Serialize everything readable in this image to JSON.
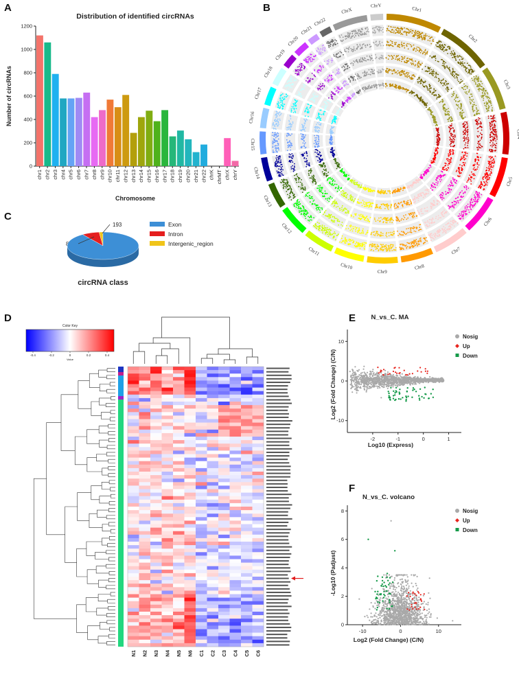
{
  "panels": {
    "a": "A",
    "b": "B",
    "c": "C",
    "d": "D",
    "e": "E",
    "f": "F"
  },
  "chart_data": [
    {
      "id": "A",
      "type": "bar",
      "title": "Distribution of identified circRNAs",
      "xlabel": "Chromosome",
      "ylabel": "Number of circRNAs",
      "ylim": [
        0,
        1200
      ],
      "yticks": [
        0,
        200,
        400,
        600,
        800,
        1000,
        1200
      ],
      "categories": [
        "chr1",
        "chr2",
        "chr3",
        "chr4",
        "chr5",
        "chr6",
        "chr7",
        "chr8",
        "chr9",
        "chr10",
        "chr11",
        "chr12",
        "chr13",
        "chr14",
        "chr15",
        "chr16",
        "chr17",
        "chr18",
        "chr19",
        "chr20",
        "chr21",
        "chr22",
        "chrK",
        "chrMT",
        "chrX",
        "chrY"
      ],
      "values": [
        1120,
        1060,
        790,
        580,
        580,
        585,
        630,
        420,
        480,
        570,
        505,
        610,
        285,
        420,
        475,
        385,
        480,
        255,
        305,
        230,
        120,
        185,
        0,
        0,
        240,
        45
      ],
      "colors": [
        "#f4736a",
        "#18b98a",
        "#1fb1f0",
        "#21a7c2",
        "#64a3f5",
        "#9f8af4",
        "#c56ff2",
        "#e76af3",
        "#ee6bc9",
        "#f07a37",
        "#d88e16",
        "#cd9a10",
        "#b39f0b",
        "#9ea60d",
        "#80ad12",
        "#4fb21b",
        "#2ab63c",
        "#25b779",
        "#21b8a3",
        "#22b6bd",
        "#22b3ce",
        "#21acde",
        "#ffffff",
        "#ffffff",
        "#ff5fb8",
        "#f36aa7"
      ]
    },
    {
      "id": "B",
      "type": "circos",
      "chromosomes": [
        "Chr1",
        "Chr2",
        "Chr3",
        "Chr4",
        "Chr5",
        "Chr6",
        "Chr7",
        "Chr8",
        "Chr9",
        "Chr10",
        "Chr11",
        "Chr12",
        "Chr13",
        "Chr14",
        "Chr15",
        "Chr16",
        "Chr17",
        "Chr18",
        "Chr19",
        "Chr20",
        "Chr21",
        "Chr22",
        "ChrX",
        "ChrY"
      ],
      "colors": [
        "#bf8800",
        "#6e6400",
        "#999922",
        "#cc0000",
        "#ff0000",
        "#ff00cc",
        "#ffcccc",
        "#ff9900",
        "#ffcc00",
        "#ffff00",
        "#ccff00",
        "#00ff00",
        "#336600",
        "#000099",
        "#6699ff",
        "#99ccff",
        "#00ffff",
        "#ccffff",
        "#9900cc",
        "#cc33ff",
        "#cc99ff",
        "#666666",
        "#999999",
        "#cccccc"
      ]
    },
    {
      "id": "C",
      "type": "pie",
      "xlabel": "circRNA class",
      "labels": [
        "Exon",
        "Intron",
        "Intergenic_region"
      ],
      "values": [
        10064,
        884,
        193
      ],
      "colors": [
        "#3d8fd6",
        "#e51e1e",
        "#f0c419"
      ]
    },
    {
      "id": "D",
      "type": "heatmap",
      "columns": [
        "N1",
        "N2",
        "N3",
        "N4",
        "N5",
        "N6",
        "C1",
        "C2",
        "C3",
        "C4",
        "C5",
        "C6"
      ],
      "color_key": {
        "title": "Color Key",
        "ticks": [
          "-0.4",
          "-0.2",
          "0",
          "0.2",
          "0.4"
        ],
        "label": "Value"
      },
      "row_count": 80,
      "highlighted_row": 60
    },
    {
      "id": "E",
      "type": "scatter",
      "title": "N_vs_C. MA",
      "xlabel": "Log10 (Express)",
      "ylabel": "Log2 (Fold Change) (C/N)",
      "xlim": [
        -3,
        1.5
      ],
      "ylim": [
        -13,
        13
      ],
      "xticks": [
        -2,
        -1,
        0,
        1
      ],
      "yticks": [
        -10,
        0,
        10
      ],
      "legend": [
        "Nosig",
        "Up",
        "Down"
      ]
    },
    {
      "id": "F",
      "type": "scatter",
      "title": "N_vs_C. volcano",
      "xlabel": "Log2 (Fold Change) (C/N)",
      "ylabel": "-Log10 (Padjust)",
      "xlim": [
        -14,
        16
      ],
      "ylim": [
        0,
        8.4
      ],
      "xticks": [
        -10,
        0,
        10
      ],
      "yticks": [
        0,
        2,
        4,
        6,
        8
      ],
      "legend": [
        "Nosig",
        "Up",
        "Down"
      ]
    }
  ],
  "pie_labels": {
    "intron_count": "884",
    "intergenic_count": "193",
    "exon_count": "10064"
  },
  "arrow_color": "#e21b1b",
  "legend_colors": {
    "nosig": "#a9a9a9",
    "up": "#e8241d",
    "down": "#159a49"
  }
}
